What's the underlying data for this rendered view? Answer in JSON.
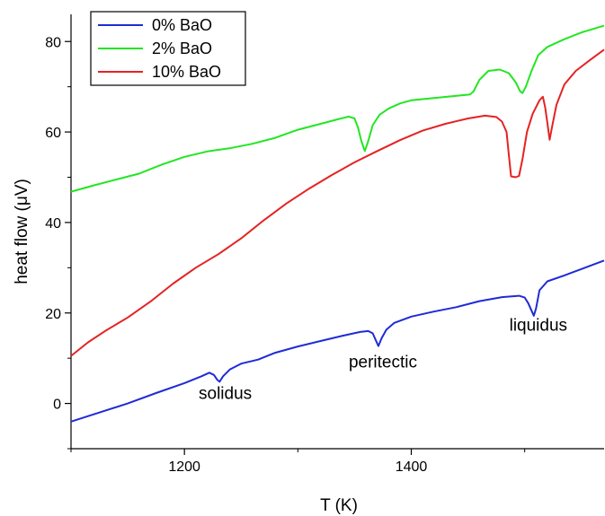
{
  "chart_data": {
    "type": "line",
    "xlabel": "T (K)",
    "ylabel": "heat flow (μV)",
    "xlim": [
      1100,
      1570
    ],
    "ylim": [
      -10,
      86
    ],
    "x_ticks": [
      "1200",
      "1400"
    ],
    "y_ticks": [
      "0",
      "20",
      "40",
      "60",
      "80"
    ],
    "grid": false,
    "legend_position": "top-left",
    "series": [
      {
        "name": "0% BaO",
        "color": "#1f2bd6",
        "points": [
          [
            1100,
            -4
          ],
          [
            1125,
            -2
          ],
          [
            1150,
            0
          ],
          [
            1175,
            2.3
          ],
          [
            1200,
            4.5
          ],
          [
            1215,
            6
          ],
          [
            1222,
            6.8
          ],
          [
            1226,
            6.3
          ],
          [
            1229,
            5.2
          ],
          [
            1231,
            4.8
          ],
          [
            1234,
            6
          ],
          [
            1240,
            7.5
          ],
          [
            1250,
            8.8
          ],
          [
            1265,
            9.7
          ],
          [
            1280,
            11.2
          ],
          [
            1300,
            12.6
          ],
          [
            1320,
            13.8
          ],
          [
            1340,
            15
          ],
          [
            1355,
            15.8
          ],
          [
            1362,
            16
          ],
          [
            1366,
            15.5
          ],
          [
            1369,
            13.8
          ],
          [
            1371,
            12.7
          ],
          [
            1374,
            14.5
          ],
          [
            1378,
            16.3
          ],
          [
            1385,
            17.8
          ],
          [
            1400,
            19.2
          ],
          [
            1420,
            20.3
          ],
          [
            1440,
            21.3
          ],
          [
            1460,
            22.6
          ],
          [
            1480,
            23.5
          ],
          [
            1495,
            23.8
          ],
          [
            1500,
            23.4
          ],
          [
            1503,
            22.2
          ],
          [
            1506,
            20.5
          ],
          [
            1508,
            19.4
          ],
          [
            1510,
            21
          ],
          [
            1513,
            25
          ],
          [
            1520,
            27
          ],
          [
            1535,
            28.3
          ],
          [
            1550,
            29.7
          ],
          [
            1570,
            31.6
          ]
        ]
      },
      {
        "name": "2% BaO",
        "color": "#22e622",
        "points": [
          [
            1100,
            46.8
          ],
          [
            1120,
            48.2
          ],
          [
            1140,
            49.5
          ],
          [
            1160,
            50.8
          ],
          [
            1180,
            52.8
          ],
          [
            1200,
            54.5
          ],
          [
            1220,
            55.7
          ],
          [
            1240,
            56.4
          ],
          [
            1260,
            57.4
          ],
          [
            1280,
            58.7
          ],
          [
            1300,
            60.5
          ],
          [
            1320,
            61.8
          ],
          [
            1335,
            62.8
          ],
          [
            1345,
            63.4
          ],
          [
            1350,
            63
          ],
          [
            1353,
            61
          ],
          [
            1356,
            58
          ],
          [
            1359,
            55.8
          ],
          [
            1362,
            58
          ],
          [
            1366,
            61.5
          ],
          [
            1372,
            63.8
          ],
          [
            1380,
            65.2
          ],
          [
            1390,
            66.3
          ],
          [
            1400,
            67
          ],
          [
            1420,
            67.5
          ],
          [
            1440,
            68
          ],
          [
            1452,
            68.3
          ],
          [
            1455,
            69
          ],
          [
            1460,
            71.5
          ],
          [
            1468,
            73.5
          ],
          [
            1478,
            73.8
          ],
          [
            1486,
            73
          ],
          [
            1492,
            71
          ],
          [
            1496,
            69
          ],
          [
            1498,
            68.6
          ],
          [
            1501,
            70
          ],
          [
            1506,
            73.5
          ],
          [
            1512,
            77
          ],
          [
            1520,
            78.8
          ],
          [
            1535,
            80.5
          ],
          [
            1550,
            82
          ],
          [
            1570,
            83.5
          ]
        ]
      },
      {
        "name": "10% BaO",
        "color": "#e52222",
        "points": [
          [
            1100,
            10.5
          ],
          [
            1115,
            13.5
          ],
          [
            1130,
            16
          ],
          [
            1150,
            19
          ],
          [
            1170,
            22.5
          ],
          [
            1190,
            26.5
          ],
          [
            1210,
            30
          ],
          [
            1230,
            33
          ],
          [
            1250,
            36.5
          ],
          [
            1270,
            40.5
          ],
          [
            1290,
            44.2
          ],
          [
            1310,
            47.5
          ],
          [
            1330,
            50.5
          ],
          [
            1350,
            53.3
          ],
          [
            1370,
            55.8
          ],
          [
            1390,
            58.2
          ],
          [
            1410,
            60.3
          ],
          [
            1430,
            61.8
          ],
          [
            1450,
            63
          ],
          [
            1465,
            63.6
          ],
          [
            1475,
            63.3
          ],
          [
            1480,
            62.3
          ],
          [
            1484,
            60
          ],
          [
            1486,
            55
          ],
          [
            1488,
            50.2
          ],
          [
            1492,
            50
          ],
          [
            1495,
            50.3
          ],
          [
            1498,
            54
          ],
          [
            1502,
            60
          ],
          [
            1507,
            64
          ],
          [
            1513,
            67
          ],
          [
            1516,
            67.8
          ],
          [
            1518,
            65.5
          ],
          [
            1520,
            62
          ],
          [
            1522,
            58.3
          ],
          [
            1524,
            61
          ],
          [
            1528,
            66
          ],
          [
            1535,
            70.5
          ],
          [
            1545,
            73.5
          ],
          [
            1558,
            76
          ],
          [
            1570,
            78.2
          ]
        ]
      }
    ],
    "annotations": [
      {
        "text": "solidus",
        "x": 1236,
        "y": 1.0
      },
      {
        "text": "peritectic",
        "x": 1375,
        "y": 8.0
      },
      {
        "text": "liquidus",
        "x": 1512,
        "y": 16.1
      }
    ]
  }
}
